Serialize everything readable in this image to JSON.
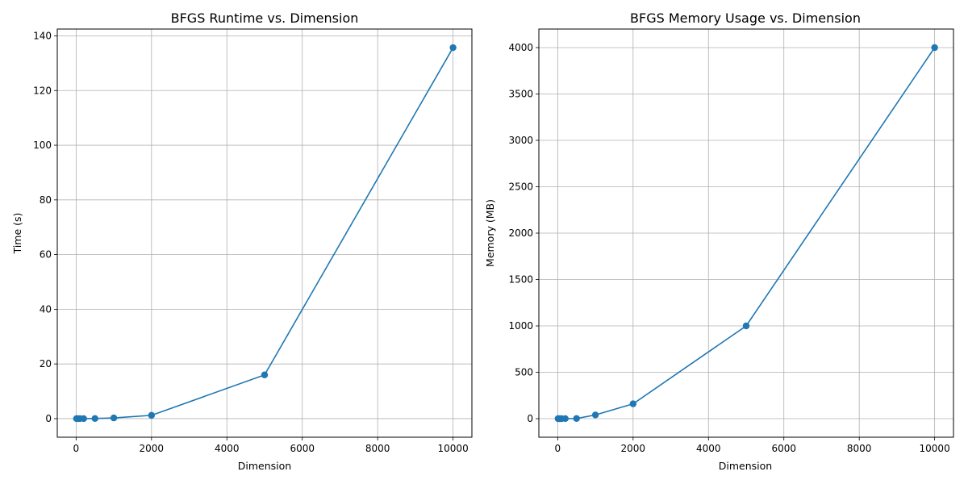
{
  "chart_data": [
    {
      "type": "line",
      "title": "BFGS Runtime vs. Dimension",
      "xlabel": "Dimension",
      "ylabel": "Time (s)",
      "xlim": [
        -500,
        10500
      ],
      "ylim": [
        -6.8,
        142.5
      ],
      "xticks": [
        0,
        2000,
        4000,
        6000,
        8000,
        10000
      ],
      "yticks": [
        0,
        20,
        40,
        60,
        80,
        100,
        120,
        140
      ],
      "grid": true,
      "color": "#1f77b4",
      "series": [
        {
          "x": [
            10,
            50,
            100,
            200,
            500,
            1000,
            2000,
            5000,
            10000
          ],
          "values": [
            0.0,
            0.0,
            0.0,
            0.0,
            0.05,
            0.25,
            1.2,
            16.0,
            135.7
          ]
        }
      ]
    },
    {
      "type": "line",
      "title": "BFGS Memory Usage vs. Dimension",
      "xlabel": "Dimension",
      "ylabel": "Memory (MB)",
      "xlim": [
        -500,
        10500
      ],
      "ylim": [
        -200,
        4200
      ],
      "xticks": [
        0,
        2000,
        4000,
        6000,
        8000,
        10000
      ],
      "yticks": [
        0,
        500,
        1000,
        1500,
        2000,
        2500,
        3000,
        3500,
        4000
      ],
      "grid": true,
      "color": "#1f77b4",
      "series": [
        {
          "x": [
            10,
            50,
            100,
            200,
            500,
            1000,
            2000,
            5000,
            10000
          ],
          "values": [
            0.0,
            0.02,
            0.08,
            0.32,
            2.0,
            40.0,
            160.0,
            1000.0,
            4000.0
          ]
        }
      ]
    }
  ]
}
